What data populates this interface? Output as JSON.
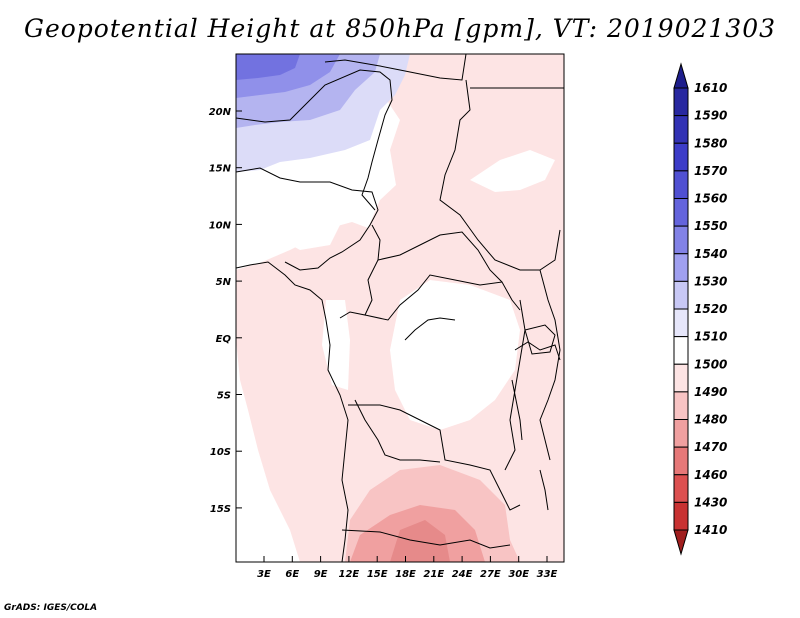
{
  "title": "Geopotential Height at 850hPa [gpm], VT: 2019021303",
  "credit": "GrADS: IGES/COLA",
  "map": {
    "lat_labels": [
      "20N",
      "15N",
      "10N",
      "5N",
      "EQ",
      "5S",
      "10S",
      "15S"
    ],
    "lon_labels": [
      "3E",
      "6E",
      "9E",
      "12E",
      "15E",
      "18E",
      "21E",
      "24E",
      "27E",
      "30E",
      "33E"
    ]
  },
  "colorbar": {
    "levels": [
      "1610",
      "1590",
      "1580",
      "1570",
      "1560",
      "1550",
      "1540",
      "1530",
      "1520",
      "1510",
      "1500",
      "1490",
      "1480",
      "1470",
      "1460",
      "1430",
      "1410"
    ],
    "colors": [
      "#1e1e8c",
      "#2828a0",
      "#3232b4",
      "#3c3cc8",
      "#5050d2",
      "#6464dc",
      "#8282e6",
      "#a0a0f0",
      "#c8c8f5",
      "#e6e6fa",
      "#ffffff",
      "#fde4e4",
      "#f8c4c4",
      "#f0a0a0",
      "#e67878",
      "#dc5050",
      "#c83232",
      "#a01e1e"
    ],
    "top_color": "#1e1e8c",
    "bottom_color": "#a01e1e"
  }
}
